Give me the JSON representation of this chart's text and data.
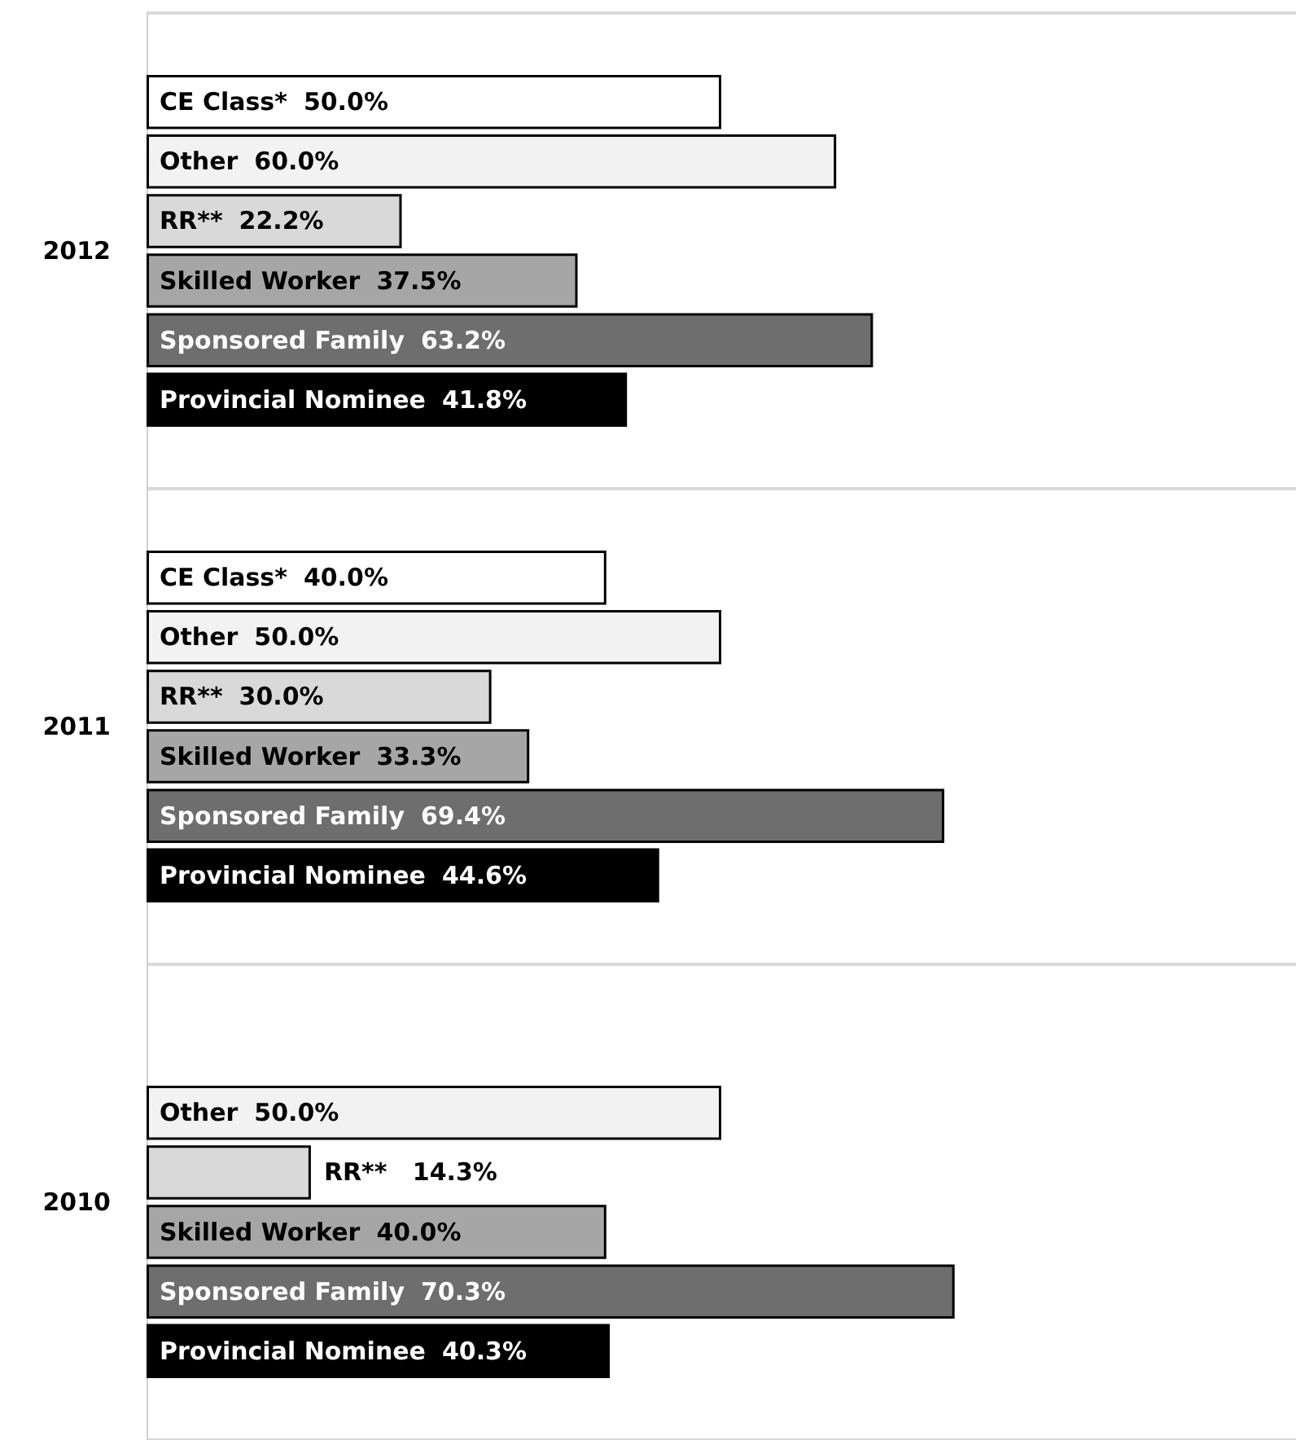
{
  "chart_data": {
    "type": "bar",
    "orientation": "horizontal",
    "categories": [
      "2012",
      "2011",
      "2010"
    ],
    "xlim": [
      0,
      100
    ],
    "grid": "y",
    "legend": false,
    "tick_labels": "y",
    "series": [
      {
        "name": "CE Class*",
        "color": "#ffffff",
        "values": [
          50.0,
          40.0,
          null
        ],
        "value_labels": [
          "50.0%",
          "40.0%",
          null
        ]
      },
      {
        "name": "Other",
        "color": "#f2f2f2",
        "values": [
          60.0,
          50.0,
          50.0
        ],
        "value_labels": [
          "60.0%",
          "50.0%",
          "50.0%"
        ]
      },
      {
        "name": "RR**",
        "color": "#d9d9d9",
        "values": [
          22.2,
          30.0,
          14.3
        ],
        "value_labels": [
          "22.2%",
          "30.0%",
          "14.3%"
        ]
      },
      {
        "name": "Skilled Worker",
        "color": "#a6a6a6",
        "values": [
          37.5,
          33.3,
          40.0
        ],
        "value_labels": [
          "37.5%",
          "33.3%",
          "40.0%"
        ]
      },
      {
        "name": "Sponsored Family",
        "color": "#6e6e6e",
        "values": [
          63.2,
          69.4,
          70.3
        ],
        "value_labels": [
          "63.2%",
          "69.4%",
          "70.3%"
        ]
      },
      {
        "name": "Provincial Nominee",
        "color": "#000000",
        "values": [
          41.8,
          44.6,
          40.3
        ],
        "value_labels": [
          "41.8%",
          "44.6%",
          "40.3%"
        ]
      }
    ]
  }
}
